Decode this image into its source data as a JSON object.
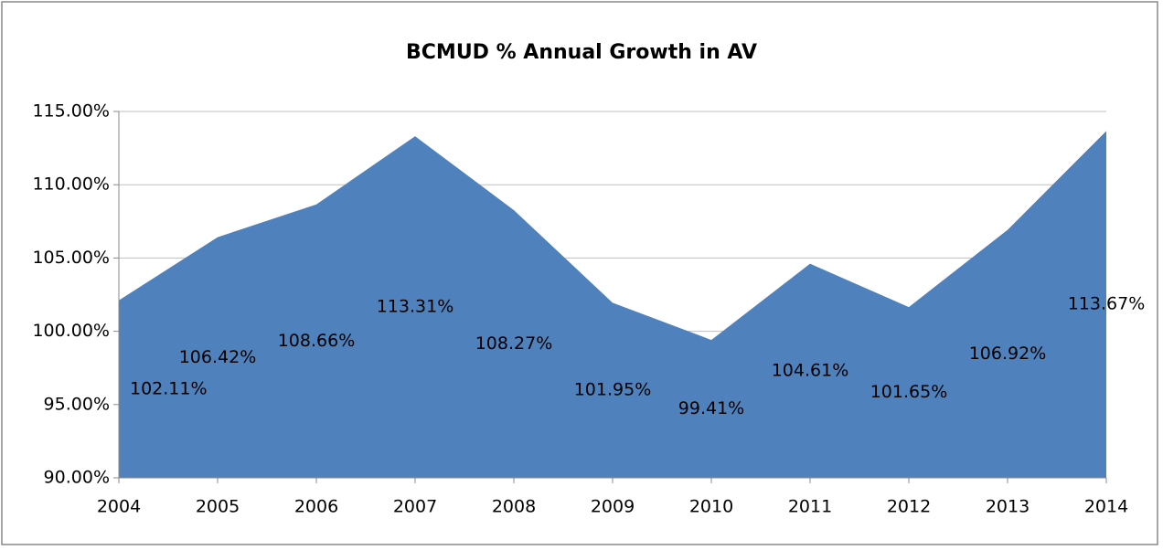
{
  "chart_data": {
    "type": "area",
    "title": "BCMUD % Annual Growth in AV",
    "categories": [
      "2004",
      "2005",
      "2006",
      "2007",
      "2008",
      "2009",
      "2010",
      "2011",
      "2012",
      "2013",
      "2014"
    ],
    "values": [
      102.11,
      106.42,
      108.66,
      113.31,
      108.27,
      101.95,
      99.41,
      104.61,
      101.65,
      106.92,
      113.67
    ],
    "value_labels": [
      "102.11%",
      "106.42%",
      "108.66%",
      "113.31%",
      "108.27%",
      "101.95%",
      "99.41%",
      "104.61%",
      "101.65%",
      "106.92%",
      "113.67%"
    ],
    "color": "#4f81bd",
    "ylim": [
      90,
      115
    ],
    "yticks": [
      {
        "value": 90,
        "label": "90.00%"
      },
      {
        "value": 95,
        "label": "95.00%"
      },
      {
        "value": 100,
        "label": "100.00%"
      },
      {
        "value": 105,
        "label": "105.00%"
      },
      {
        "value": 110,
        "label": "110.00%"
      },
      {
        "value": 115,
        "label": "115.00%"
      }
    ],
    "grid": true
  }
}
